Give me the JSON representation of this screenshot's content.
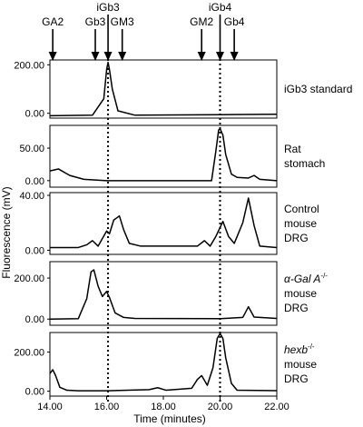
{
  "chart_data": {
    "type": "line",
    "xlabel": "Time (minutes)",
    "ylabel": "Fluorescence (mV)",
    "xlim": [
      14.0,
      22.0
    ],
    "xticks": [
      "14.00",
      "16.00",
      "18.00",
      "20.00",
      "22.00"
    ],
    "markers": [
      {
        "label": "GA2",
        "x": 14.1,
        "row": "low"
      },
      {
        "label": "Gb3",
        "x": 15.6,
        "row": "low"
      },
      {
        "label": "iGb3",
        "x": 16.05,
        "row": "high"
      },
      {
        "label": "GM3",
        "x": 16.55,
        "row": "low"
      },
      {
        "label": "GM2",
        "x": 19.35,
        "row": "low"
      },
      {
        "label": "iGb4",
        "x": 20.0,
        "row": "high"
      },
      {
        "label": "Gb4",
        "x": 20.5,
        "row": "low"
      }
    ],
    "reference_lines": [
      16.05,
      20.0
    ],
    "panels": [
      {
        "label": [
          "iGb3 standard"
        ],
        "italic_first": false,
        "ylim": [
          -20,
          220
        ],
        "yticks": [
          "200.00",
          "0.00"
        ],
        "ytick_values": [
          200,
          0
        ],
        "series": [
          {
            "x": [
              14.0,
              15.5,
              15.9,
              16.0,
              16.05,
              16.1,
              16.2,
              16.4,
              17.0,
              20.0,
              22.0
            ],
            "y": [
              -10,
              -8,
              60,
              180,
              210,
              180,
              100,
              10,
              -8,
              -6,
              -4
            ]
          }
        ]
      },
      {
        "label": [
          "Rat",
          "stomach"
        ],
        "italic_first": false,
        "ylim": [
          -10,
          85
        ],
        "yticks": [
          "50.00",
          "0.00"
        ],
        "ytick_values": [
          50,
          0
        ],
        "series": [
          {
            "x": [
              14.0,
              14.3,
              14.7,
              15.2,
              16.0,
              18.0,
              19.7,
              19.85,
              19.95,
              20.0,
              20.1,
              20.2,
              20.4,
              20.6,
              21.0,
              21.2,
              21.4,
              22.0
            ],
            "y": [
              15,
              18,
              8,
              2,
              0,
              0,
              0,
              45,
              78,
              80,
              70,
              40,
              10,
              5,
              4,
              8,
              2,
              0
            ]
          }
        ]
      },
      {
        "label": [
          "Control",
          "mouse",
          "DRG"
        ],
        "italic_first": false,
        "ylim": [
          -3,
          42
        ],
        "yticks": [
          "40.00",
          "0.00"
        ],
        "ytick_values": [
          40,
          0
        ],
        "series": [
          {
            "x": [
              14.0,
              15.0,
              15.3,
              15.5,
              15.7,
              16.0,
              16.1,
              16.25,
              16.45,
              16.6,
              16.8,
              17.2,
              18.0,
              19.2,
              19.45,
              19.65,
              19.85,
              20.1,
              20.3,
              20.5,
              20.8,
              21.0,
              21.2,
              21.4,
              22.0
            ],
            "y": [
              2,
              2,
              4,
              7,
              3,
              14,
              12,
              22,
              25,
              15,
              5,
              3,
              3,
              3,
              7,
              3,
              10,
              21,
              10,
              5,
              20,
              38,
              18,
              3,
              2
            ]
          }
        ]
      },
      {
        "label": [
          "α-Gal A",
          "mouse",
          "DRG"
        ],
        "label_sup": "-/-",
        "italic_first": true,
        "ylim": [
          -30,
          280
        ],
        "yticks": [
          "200.00",
          "0.00"
        ],
        "ytick_values": [
          200,
          0
        ],
        "series": [
          {
            "x": [
              14.0,
              15.0,
              15.3,
              15.45,
              15.55,
              15.7,
              15.85,
              16.0,
              16.1,
              16.3,
              16.6,
              17.0,
              20.0,
              20.8,
              21.0,
              21.2,
              22.0
            ],
            "y": [
              0,
              2,
              100,
              230,
              240,
              160,
              110,
              135,
              105,
              30,
              8,
              3,
              2,
              8,
              60,
              10,
              3
            ]
          }
        ]
      },
      {
        "label": [
          "hexb",
          "mouse",
          "DRG"
        ],
        "label_sup": "-/-",
        "italic_first": true,
        "ylim": [
          -25,
          300
        ],
        "yticks": [
          "200.00",
          "0.00"
        ],
        "ytick_values": [
          200,
          0
        ],
        "series": [
          {
            "x": [
              14.0,
              14.1,
              14.2,
              14.35,
              14.6,
              15.0,
              16.0,
              17.5,
              17.8,
              18.1,
              19.0,
              19.2,
              19.35,
              19.55,
              19.75,
              19.9,
              20.0,
              20.1,
              20.2,
              20.4,
              20.6,
              22.0
            ],
            "y": [
              90,
              110,
              80,
              20,
              5,
              2,
              2,
              8,
              18,
              5,
              15,
              60,
              80,
              30,
              120,
              270,
              295,
              270,
              170,
              40,
              5,
              3
            ]
          }
        ]
      }
    ]
  }
}
